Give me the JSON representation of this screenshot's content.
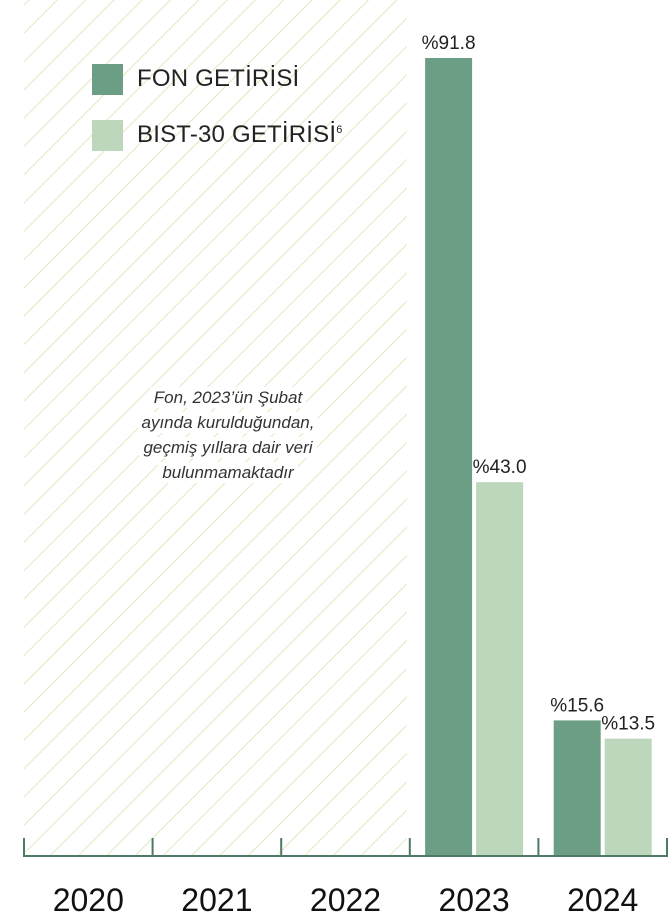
{
  "chart_data": {
    "type": "bar",
    "categories": [
      "2020",
      "2021",
      "2022",
      "2023",
      "2024"
    ],
    "series": [
      {
        "name": "FON GETİRİSİ",
        "name_superscript": "",
        "color": "#6b9e85",
        "values": [
          null,
          null,
          null,
          91.8,
          15.6
        ],
        "labels": [
          "",
          "",
          "",
          "%91.8",
          "%15.6"
        ]
      },
      {
        "name": "BIST-30 GETİRİSİ",
        "name_superscript": "6",
        "color": "#bcd7bc",
        "values": [
          null,
          null,
          null,
          43.0,
          13.5
        ],
        "labels": [
          "",
          "",
          "",
          "%43.0",
          "%13.5"
        ]
      }
    ],
    "ylim": [
      0,
      91.8
    ],
    "grid": false,
    "legend_position": "top-left",
    "unavailable_categories": [
      "2020",
      "2021",
      "2022"
    ],
    "unavailable_pattern_color": "#dfe9bf",
    "axis_color": "#4e7a63",
    "note_lines": [
      "Fon, 2023’ün Şubat",
      "ayında kurulduğundan,",
      "geçmiş yıllara dair veri",
      "bulunmamaktadır"
    ]
  }
}
